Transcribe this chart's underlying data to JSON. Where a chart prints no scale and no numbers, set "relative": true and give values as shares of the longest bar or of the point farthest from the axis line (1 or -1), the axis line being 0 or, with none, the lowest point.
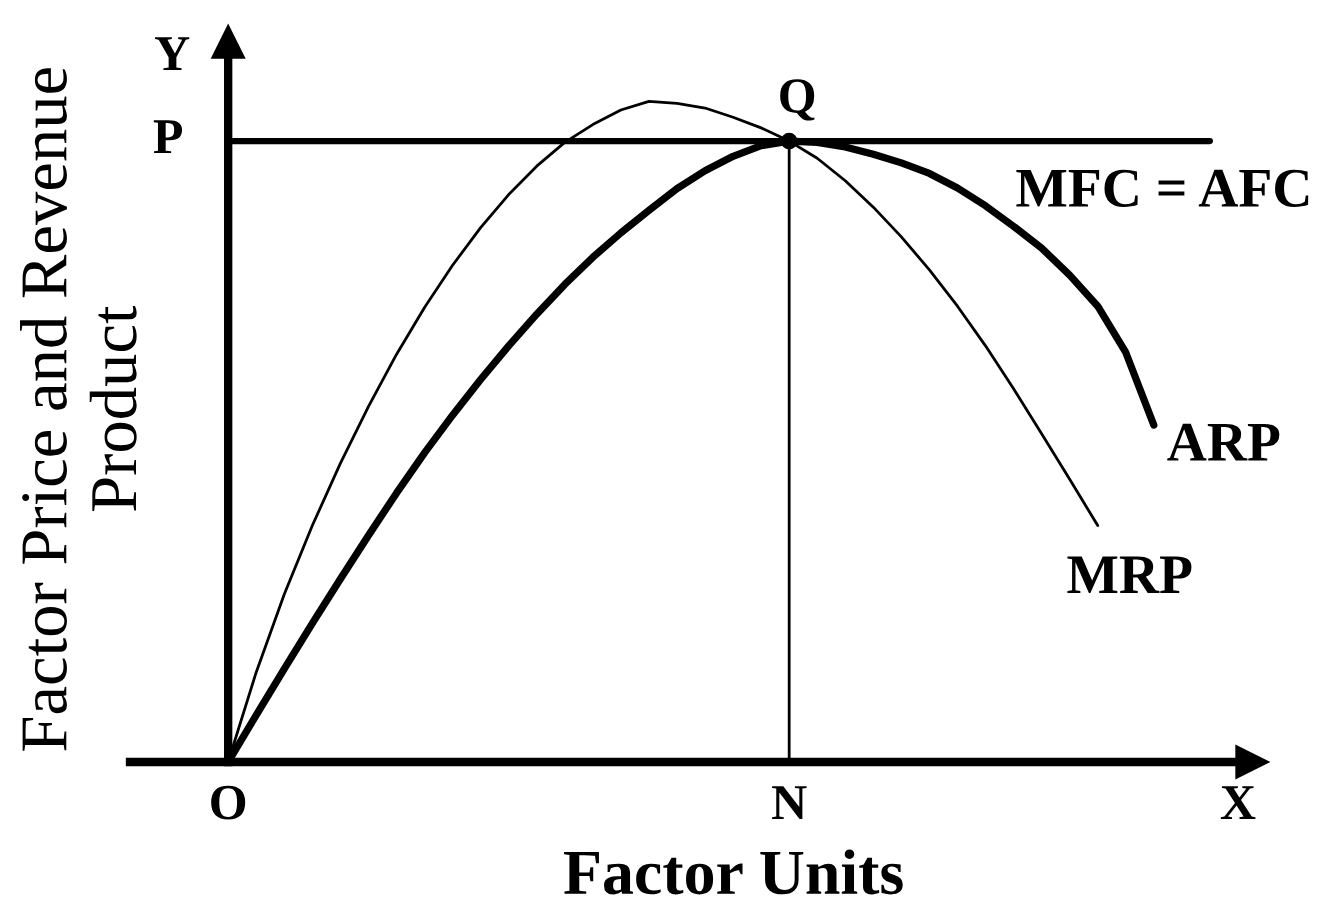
{
  "chart_data": {
    "type": "line",
    "relative": true,
    "xlabel": "Factor Units",
    "ylabel": "Factor Price and Revenue\nProduct",
    "categories": [
      null,
      null,
      null,
      "O",
      null,
      null,
      null,
      null,
      null,
      null,
      null,
      null,
      null,
      null,
      null,
      null,
      null,
      null,
      null,
      null,
      null,
      null,
      null,
      "N",
      null,
      null,
      null,
      null,
      null,
      null,
      null,
      null,
      null,
      null,
      null,
      null,
      null,
      null,
      null,
      "X"
    ],
    "series": [
      {
        "name": "MFC = AFC",
        "color": "#000000",
        "values": [
          null,
          null,
          null,
          0.94,
          0.94,
          0.94,
          0.94,
          0.94,
          0.94,
          0.94,
          0.94,
          0.94,
          0.94,
          0.94,
          0.94,
          0.94,
          0.94,
          0.94,
          0.94,
          0.94,
          0.94,
          0.94,
          0.94,
          0.94,
          0.94,
          0.94,
          0.94,
          0.94,
          0.94,
          0.94,
          0.94,
          0.94,
          0.94,
          0.94,
          0.94,
          0.94,
          0.94,
          0.94,
          0.94,
          null
        ]
      },
      {
        "type": "lollipop",
        "marker": "circle",
        "color": "#000000",
        "values": [
          null,
          null,
          null,
          null,
          null,
          null,
          null,
          null,
          null,
          null,
          null,
          null,
          null,
          null,
          null,
          null,
          null,
          null,
          null,
          null,
          null,
          null,
          null,
          0.94,
          null,
          null,
          null,
          null,
          null,
          null,
          null,
          null,
          null,
          null,
          null,
          null,
          null,
          null,
          null,
          null
        ]
      },
      {
        "name": "MRP",
        "color": "#000000",
        "values": [
          null,
          null,
          null,
          0,
          0.136,
          0.254,
          0.358,
          0.452,
          0.538,
          0.617,
          0.688,
          0.752,
          0.809,
          0.859,
          0.902,
          0.938,
          0.965,
          0.987,
          1,
          0.997,
          0.99,
          0.976,
          0.96,
          0.94,
          0.914,
          0.88,
          0.84,
          0.795,
          0.745,
          0.69,
          0.63,
          0.565,
          0.497,
          0.428,
          0.358,
          null,
          null,
          null,
          null,
          null
        ]
      },
      {
        "name": "ARP",
        "color": "#000000",
        "values": [
          null,
          null,
          null,
          0,
          0.071,
          0.141,
          0.21,
          0.277,
          0.343,
          0.407,
          0.468,
          0.525,
          0.579,
          0.63,
          0.678,
          0.723,
          0.764,
          0.801,
          0.835,
          0.868,
          0.895,
          0.917,
          0.933,
          0.94,
          0.938,
          0.931,
          0.92,
          0.907,
          0.891,
          0.869,
          0.842,
          0.811,
          0.778,
          0.737,
          0.69,
          0.62,
          0.51,
          null,
          null,
          null
        ]
      }
    ],
    "annotations": [
      {
        "text": "Q",
        "x": "N",
        "y": 0.94
      },
      {
        "text": "P",
        "x": "O",
        "y": 0.94
      },
      "Y"
    ],
    "line_style": "solid"
  }
}
